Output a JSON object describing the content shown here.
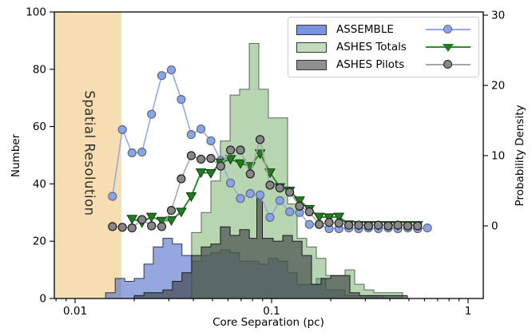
{
  "figure": {
    "background": "#ffffff"
  },
  "axes": {
    "xlabel": "Core Separation (pc)",
    "ylabel_left": "Number",
    "ylabel_right": "Probability Density",
    "x_scale": "log",
    "x_major_ticks": [
      0.01,
      0.1,
      1
    ],
    "x_major_tick_labels": [
      "0.01",
      "0.1",
      "1"
    ],
    "x_minor_ticks": [
      0.008,
      0.009,
      0.02,
      0.03,
      0.04,
      0.05,
      0.06,
      0.07,
      0.08,
      0.09,
      0.2,
      0.3,
      0.4,
      0.5,
      0.6,
      0.7,
      0.8,
      0.9
    ],
    "y_left_ticks": [
      0,
      20,
      40,
      60,
      80,
      100
    ],
    "y_right_ticks": [
      0,
      10,
      20,
      30
    ],
    "x_range": [
      0.0078,
      1.2
    ],
    "y_left_range": [
      0,
      100
    ],
    "y_right_range": [
      -10.3,
      30.4
    ],
    "grid": false
  },
  "annotations": {
    "spatial_resolution_label": "Spatial Resolution"
  },
  "legend": {
    "position": "upper right",
    "items": [
      {
        "label": "ASSEMBLE",
        "patch_color": "#7b93de",
        "line_color": "#93aae6",
        "marker": "circle",
        "marker_fill": "#8aa5e6",
        "marker_edge": "#5d6b85"
      },
      {
        "label": "ASHES Totals",
        "patch_color": "#c3dcbc",
        "line_color": "#2e8b2e",
        "marker": "triangle-down",
        "marker_fill": "#1f7d1f",
        "marker_edge": "#103d10"
      },
      {
        "label": "ASHES Pilots",
        "patch_color": "#8f8f8f",
        "line_color": "#a6a6a6",
        "marker": "circle",
        "marker_fill": "#878787",
        "marker_edge": "#1f1f1f"
      }
    ]
  },
  "chart_data": {
    "type": "mixed",
    "title": "",
    "xlabel": "Core Separation (pc)",
    "ylabel": "Number",
    "ylabel_right": "Probability Density",
    "band": {
      "label": "Spatial Resolution",
      "x_min_pc": 0.0078,
      "x_max_pc": 0.0172,
      "color": "#f6deb2"
    },
    "histograms": [
      {
        "name": "ASSEMBLE",
        "type": "bar",
        "axis": "left",
        "fill": "rgba(72,104,200,0.58)",
        "stroke": "#2f3640",
        "edges_pc": [
          0.0143,
          0.016,
          0.0179,
          0.02,
          0.0224,
          0.025,
          0.028,
          0.0313,
          0.035,
          0.0392,
          0.0439,
          0.0491,
          0.0549,
          0.0615,
          0.0688,
          0.077,
          0.0861,
          0.0963,
          0.1078,
          0.1206,
          0.1349,
          0.151,
          0.1689,
          0.189,
          0.2114,
          0.2366,
          0.2647,
          0.2962,
          0.3314,
          0.3708
        ],
        "counts": [
          2,
          7,
          6,
          7,
          12,
          18,
          21,
          19,
          15,
          13,
          15,
          16,
          17,
          16,
          13,
          13,
          12,
          14,
          13,
          9,
          5,
          5,
          7,
          3,
          3,
          1,
          1,
          1,
          1
        ]
      },
      {
        "name": "ASHES Totals",
        "type": "bar",
        "axis": "left",
        "fill": "rgba(122,179,112,0.55)",
        "stroke": "#5a6a5a",
        "edges_pc": [
          0.0392,
          0.0439,
          0.0491,
          0.0549,
          0.0615,
          0.0688,
          0.077,
          0.0861,
          0.0963,
          0.1078,
          0.1206,
          0.1349,
          0.151,
          0.1689,
          0.189,
          0.2114,
          0.2366,
          0.2647,
          0.2962,
          0.3314,
          0.3708,
          0.4149,
          0.4642
        ],
        "counts": [
          23,
          30,
          41,
          55,
          71,
          73,
          89,
          73,
          63,
          63,
          33,
          21,
          18,
          14,
          8,
          8,
          10,
          5,
          3,
          2,
          2,
          2
        ]
      },
      {
        "name": "ASHES Pilots",
        "type": "bar",
        "axis": "left",
        "fill": "rgba(60,63,65,0.62)",
        "stroke": "#1c1c1c",
        "edges_pc": [
          0.02,
          0.0224,
          0.025,
          0.028,
          0.0313,
          0.035,
          0.0392,
          0.0439,
          0.0491,
          0.0549,
          0.0615,
          0.0688,
          0.077,
          0.0814,
          0.0841,
          0.0898,
          0.1019,
          0.114,
          0.1276,
          0.1428,
          0.1597,
          0.1787,
          0.1999,
          0.2237,
          0.2503,
          0.28,
          0.3132,
          0.3505,
          0.3922,
          0.4388,
          0.491
        ],
        "counts": [
          1,
          2,
          2,
          3,
          6,
          9,
          15,
          18,
          19,
          25,
          22,
          24,
          21,
          21,
          37,
          21,
          20,
          22,
          20,
          15,
          5,
          7,
          8,
          8,
          2,
          1,
          1,
          1,
          1,
          1
        ]
      }
    ],
    "kde_lines": [
      {
        "name": "ASSEMBLE",
        "type": "line",
        "axis": "right",
        "color": "#93aae6",
        "width": 1.6,
        "marker": "circle",
        "marker_fill": "#8aa5e6",
        "marker_edge": "#5d6b85",
        "x_pc": [
          0.0155,
          0.0174,
          0.0195,
          0.0219,
          0.0245,
          0.0276,
          0.0309,
          0.0347,
          0.039,
          0.0437,
          0.0491,
          0.0551,
          0.0618,
          0.0694,
          0.0779,
          0.0874,
          0.0981,
          0.1101,
          0.1236,
          0.1388,
          0.1557,
          0.1747,
          0.1962,
          0.2201,
          0.247,
          0.2773,
          0.3113,
          0.3493,
          0.3922,
          0.4394,
          0.4931,
          0.5537,
          0.6212
        ],
        "pd": [
          4.2,
          13.7,
          10.4,
          10.5,
          15.9,
          21.4,
          22.2,
          18.0,
          13.0,
          13.8,
          12.1,
          9.3,
          6.1,
          3.9,
          4.6,
          4.4,
          1.2,
          3.6,
          2.0,
          1.9,
          0.2,
          0.2,
          -0.4,
          -0.4,
          -0.3,
          -0.4,
          -0.3,
          -0.4,
          -0.3,
          -0.4,
          -0.3,
          -0.4,
          -0.3
        ]
      },
      {
        "name": "ASHES Totals",
        "type": "line",
        "axis": "right",
        "color": "#2e8b2e",
        "width": 2.0,
        "marker": "triangle-down",
        "marker_fill": "#1f7d1f",
        "marker_edge": "#103d10",
        "x_pc": [
          0.0195,
          0.0219,
          0.0245,
          0.0276,
          0.0309,
          0.0347,
          0.039,
          0.0437,
          0.0491,
          0.0551,
          0.0618,
          0.0694,
          0.0779,
          0.0874,
          0.0981,
          0.1101,
          0.1236,
          0.1388,
          0.1557,
          0.1747,
          0.1962,
          0.2201,
          0.247,
          0.2773,
          0.3113,
          0.3493,
          0.3922,
          0.4394,
          0.4931,
          0.5537
        ],
        "pd": [
          1.0,
          0.5,
          1.3,
          0.7,
          0.8,
          2.0,
          4.2,
          7.6,
          7.5,
          9.0,
          9.5,
          8.9,
          8.5,
          10.3,
          7.6,
          5.5,
          5.0,
          3.6,
          2.4,
          1.3,
          1.2,
          1.3,
          0.2,
          0.1,
          0.1,
          0.1,
          0.1,
          0.1,
          0.1,
          0.1
        ]
      },
      {
        "name": "ASHES Pilots",
        "type": "line",
        "axis": "right",
        "color": "#a6a6a6",
        "width": 1.6,
        "marker": "circle",
        "marker_fill": "#878787",
        "marker_edge": "#1f1f1f",
        "x_pc": [
          0.0155,
          0.0174,
          0.0195,
          0.0219,
          0.0245,
          0.0276,
          0.0309,
          0.0347,
          0.039,
          0.0437,
          0.0491,
          0.0551,
          0.0618,
          0.0694,
          0.0779,
          0.0874,
          0.0981,
          0.1101,
          0.1236,
          0.1388,
          0.1557,
          0.1747,
          0.1962,
          0.2201,
          0.247,
          0.2773,
          0.3113,
          0.3493,
          0.3922,
          0.4394,
          0.4931,
          0.5537
        ],
        "pd": [
          -0.1,
          -0.2,
          -0.3,
          0.9,
          0.0,
          -0.1,
          2.2,
          6.7,
          10.0,
          9.5,
          9.6,
          8.5,
          10.8,
          10.8,
          7.4,
          12.3,
          5.8,
          5.4,
          4.8,
          2.8,
          2.0,
          0.2,
          0.5,
          0.4,
          0.1,
          0.1,
          0.0,
          0.1,
          0.0,
          0.1,
          0.0,
          0.0
        ]
      }
    ]
  }
}
